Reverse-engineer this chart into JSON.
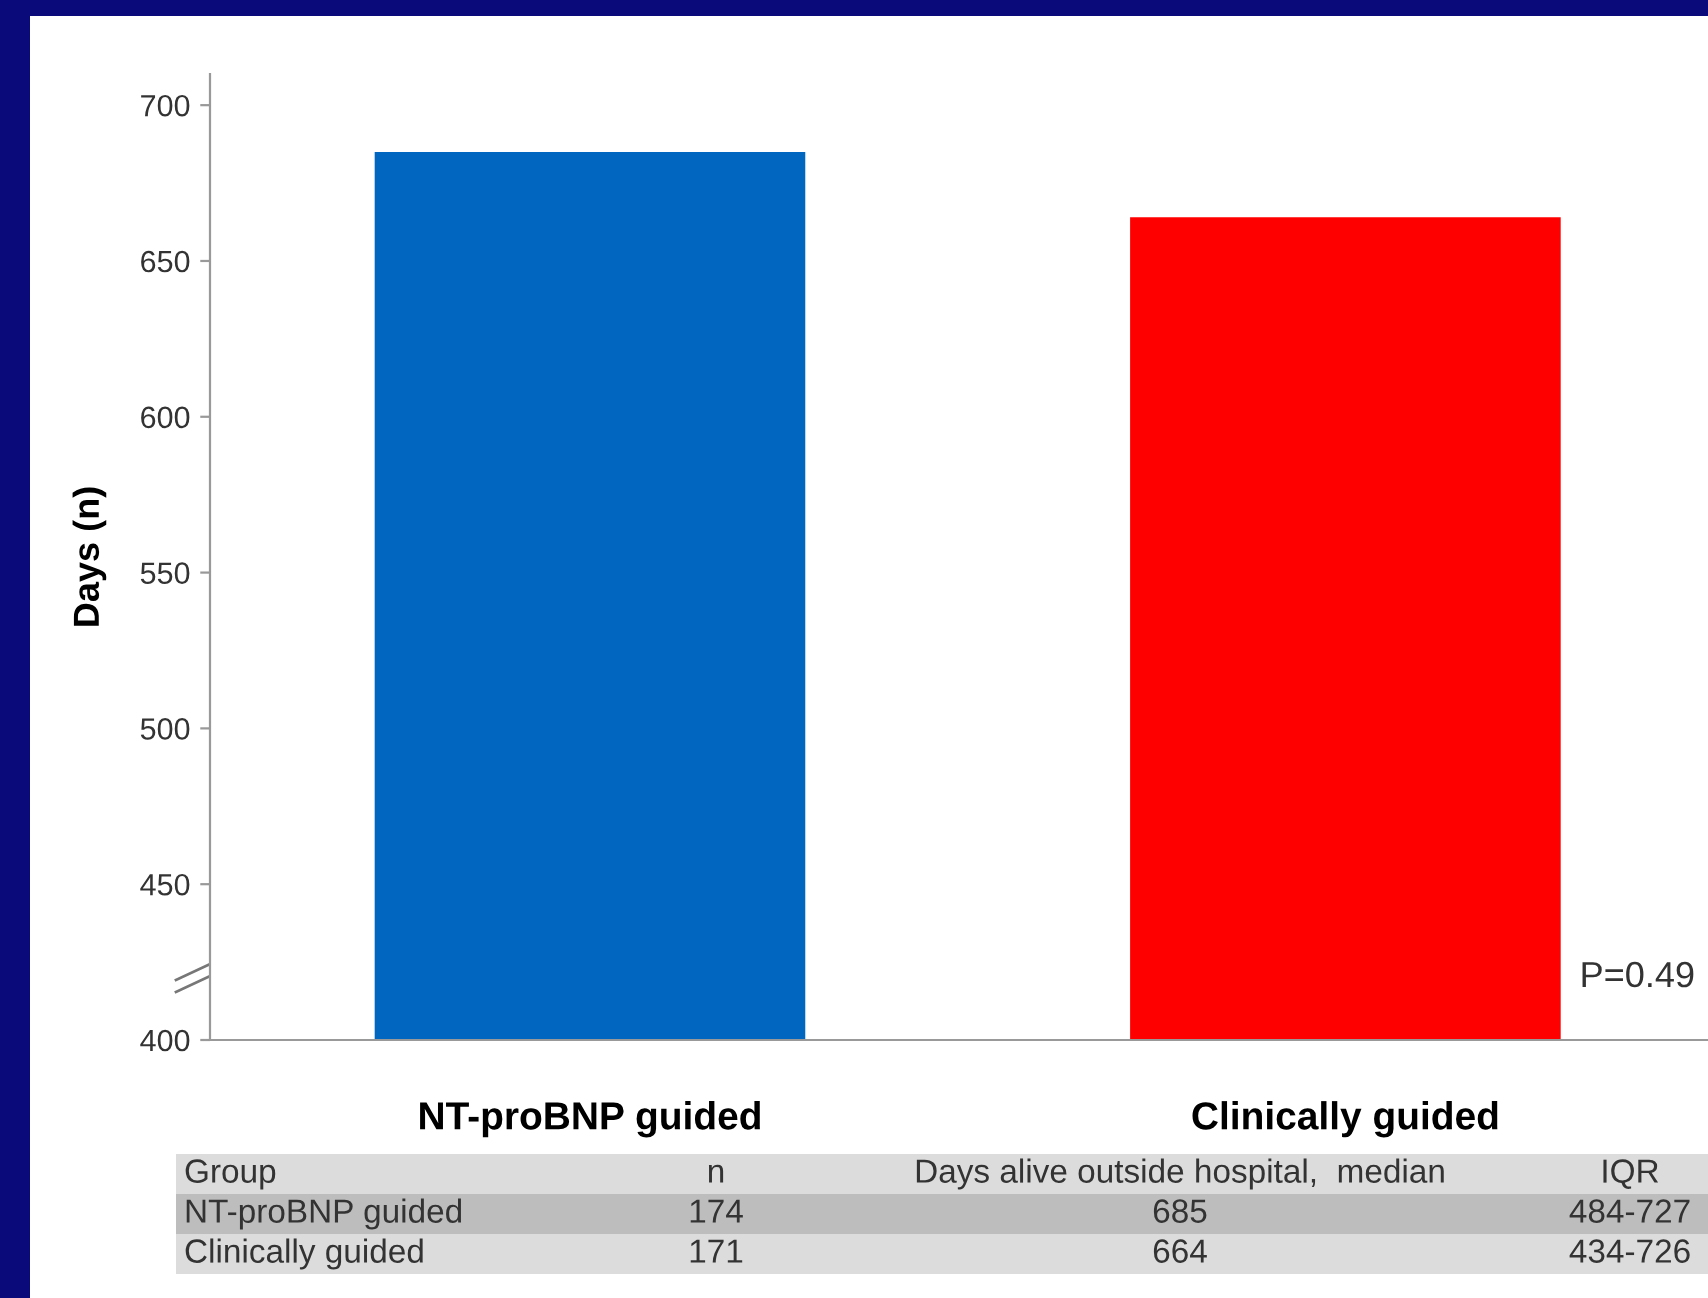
{
  "chart_data": {
    "type": "bar",
    "ylabel": "Days (n)",
    "categories": [
      "NT-proBNP guided",
      "Clinically guided"
    ],
    "values": [
      685,
      664
    ],
    "colors": [
      "#0066bf",
      "#ff0000"
    ],
    "ylim": [
      400,
      710
    ],
    "yticks": [
      400,
      450,
      500,
      550,
      600,
      650,
      700
    ],
    "grid": false,
    "annotations": [
      "P=0.49",
      "Group",
      "n",
      "Days alive outside hospital,  median",
      "IQR",
      "174",
      "685",
      "484-727",
      "171",
      "664",
      "434-726"
    ]
  }
}
